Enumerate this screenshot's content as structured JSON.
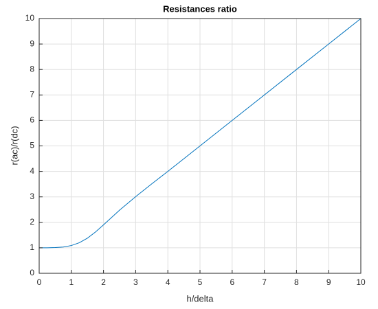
{
  "chart_data": {
    "type": "line",
    "title": "Resistances ratio",
    "x_label": "h/delta",
    "y_label": "r(ac)/r(dc)",
    "series": [
      {
        "color": "#0072bd",
        "x": [
          0,
          0.25,
          0.5,
          0.75,
          1,
          1.25,
          1.5,
          1.75,
          2,
          2.5,
          3,
          3.5,
          4,
          5,
          6,
          7,
          8,
          9,
          10
        ],
        "values": [
          1,
          1,
          1.01,
          1.03,
          1.09,
          1.2,
          1.38,
          1.62,
          1.9,
          2.48,
          3.01,
          3.51,
          4,
          5,
          6,
          7,
          8,
          9,
          10
        ]
      }
    ],
    "xlim": [
      0,
      10
    ],
    "xticks": [
      0,
      1,
      2,
      3,
      4,
      5,
      6,
      7,
      8,
      9,
      10
    ],
    "ylim": [
      0,
      10
    ],
    "yticks": [
      0,
      1,
      2,
      3,
      4,
      5,
      6,
      7,
      8,
      9,
      10
    ],
    "grid": true
  }
}
